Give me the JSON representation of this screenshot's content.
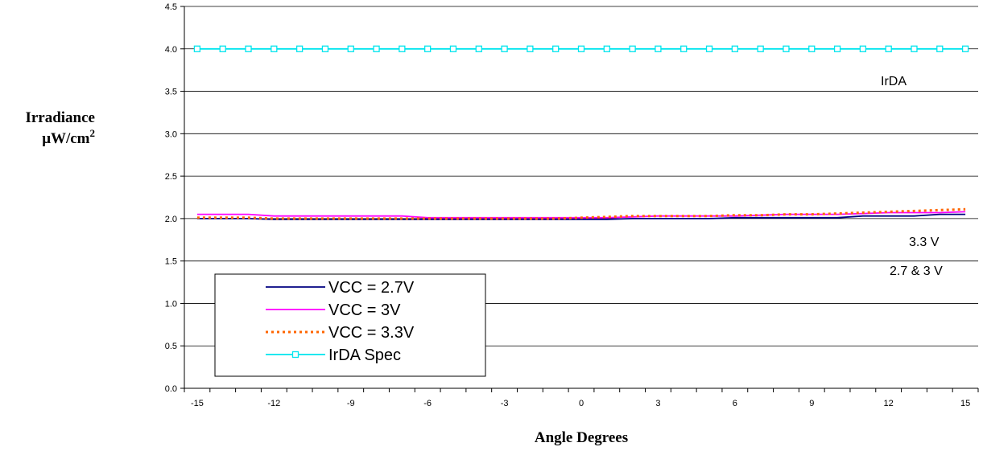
{
  "chart_data": {
    "type": "line",
    "ylabel": "Irradiance",
    "ylabel_unit_prefix": "μW/cm",
    "ylabel_unit_exponent": "2",
    "xlabel": "Angle Degrees",
    "xlim": [
      -15.5,
      15.5
    ],
    "ylim": [
      0,
      4.5
    ],
    "x_ticks": [
      -15,
      -12,
      -9,
      -6,
      -3,
      0,
      3,
      6,
      9,
      12,
      15
    ],
    "x_tick_labels": [
      "-15",
      "-12",
      "-9",
      "-6",
      "-3",
      "0",
      "3",
      "6",
      "9",
      "12",
      "15"
    ],
    "y_ticks": [
      0,
      0.5,
      1.0,
      1.5,
      2.0,
      2.5,
      3.0,
      3.5,
      4.0,
      4.5
    ],
    "y_tick_labels": [
      "0.0",
      "0.5",
      "1.0",
      "1.5",
      "2.0",
      "2.5",
      "3.0",
      "3.5",
      "4.0",
      "4.5"
    ],
    "grid": "horizontal",
    "legend_position": "bottom-left",
    "x": [
      -15,
      -14,
      -13,
      -12,
      -11,
      -10,
      -9,
      -8,
      -7,
      -6,
      -5,
      -4,
      -3,
      -2,
      -1,
      0,
      1,
      2,
      3,
      4,
      5,
      6,
      7,
      8,
      9,
      10,
      11,
      12,
      13,
      14,
      15
    ],
    "series": [
      {
        "name": "VCC = 2.7V",
        "color": "#000080",
        "dash": "solid",
        "values": [
          2.0,
          2.0,
          2.0,
          1.99,
          1.99,
          1.99,
          1.99,
          1.99,
          1.99,
          1.99,
          1.99,
          1.99,
          1.99,
          1.99,
          1.99,
          1.99,
          1.99,
          2.0,
          2.0,
          2.0,
          2.0,
          2.01,
          2.01,
          2.01,
          2.01,
          2.01,
          2.03,
          2.03,
          2.03,
          2.05,
          2.05
        ]
      },
      {
        "name": "VCC = 3V",
        "color": "#ff00ff",
        "dash": "solid",
        "values": [
          2.05,
          2.05,
          2.05,
          2.03,
          2.03,
          2.03,
          2.03,
          2.03,
          2.03,
          2.01,
          2.01,
          2.01,
          2.01,
          2.01,
          2.01,
          2.01,
          2.01,
          2.02,
          2.03,
          2.03,
          2.03,
          2.03,
          2.04,
          2.05,
          2.05,
          2.05,
          2.06,
          2.07,
          2.07,
          2.07,
          2.08
        ]
      },
      {
        "name": "VCC = 3.3V",
        "color": "#ff6600",
        "dash": "dotted",
        "values": [
          2.01,
          2.01,
          2.01,
          2.0,
          2.0,
          2.0,
          2.0,
          2.0,
          2.0,
          2.0,
          2.0,
          2.0,
          2.0,
          2.0,
          2.0,
          2.01,
          2.02,
          2.03,
          2.03,
          2.03,
          2.03,
          2.04,
          2.04,
          2.05,
          2.05,
          2.06,
          2.07,
          2.08,
          2.09,
          2.1,
          2.11
        ]
      },
      {
        "name": "IrDA Spec",
        "color": "#00e5ee",
        "dash": "solid",
        "marker": "square",
        "values": [
          4,
          4,
          4,
          4,
          4,
          4,
          4,
          4,
          4,
          4,
          4,
          4,
          4,
          4,
          4,
          4,
          4,
          4,
          4,
          4,
          4,
          4,
          4,
          4,
          4,
          4,
          4,
          4,
          4,
          4,
          4
        ]
      }
    ],
    "annotations": [
      "IrDA",
      "3.3 V",
      "2.7 & 3 V"
    ]
  }
}
